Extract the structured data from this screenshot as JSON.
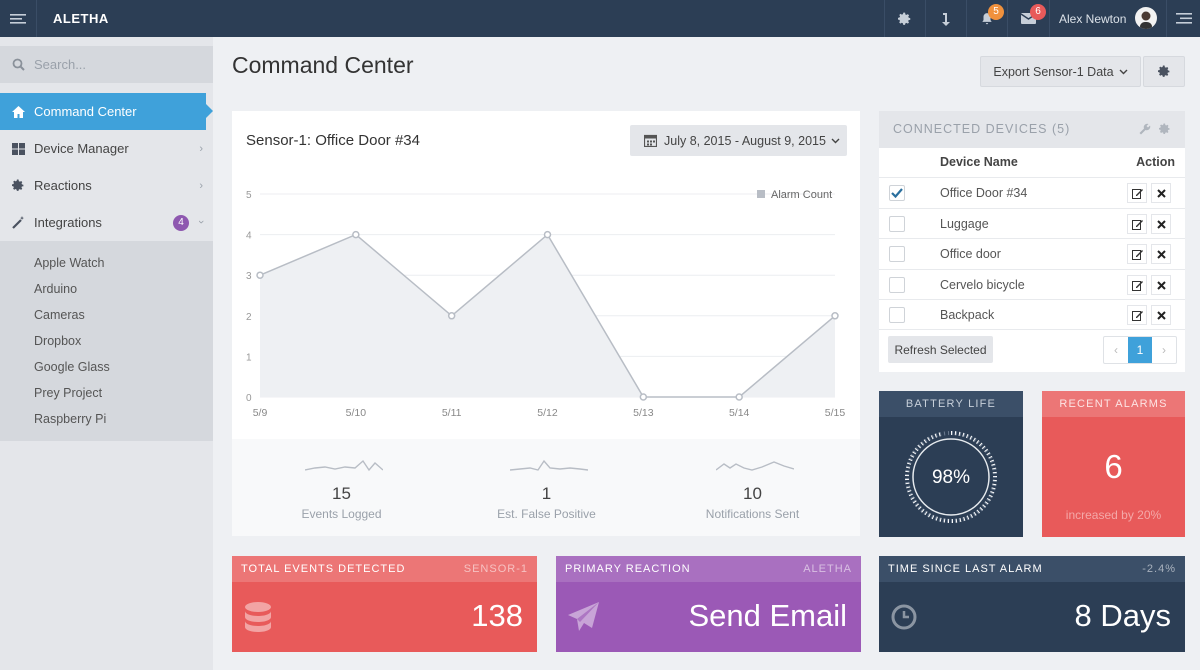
{
  "app": {
    "brand": "ALETHA"
  },
  "topbar": {
    "user_name": "Alex Newton",
    "alerts_count": "5",
    "messages_count": "6",
    "colors": {
      "bg": "#2c3e55",
      "alerts_badge": "#f0913d",
      "messages_badge": "#e85a5a"
    }
  },
  "sidebar": {
    "search_placeholder": "Search...",
    "items": [
      {
        "label": "Command Center",
        "icon": "home-icon"
      },
      {
        "label": "Device Manager",
        "icon": "th-large-icon"
      },
      {
        "label": "Reactions",
        "icon": "cog-icon"
      },
      {
        "label": "Integrations",
        "icon": "magic-wand-icon",
        "badge": "4"
      }
    ],
    "sub_items": [
      "Apple Watch",
      "Arduino",
      "Cameras",
      "Dropbox",
      "Google Glass",
      "Prey Project",
      "Raspberry Pi"
    ]
  },
  "page": {
    "title": "Command Center",
    "export_label": "Export Sensor-1 Data"
  },
  "chart_panel": {
    "title": "Sensor-1: Office Door #34",
    "date_range": "July 8, 2015 - August 9, 2015"
  },
  "chart_data": {
    "type": "area",
    "title": "Sensor-1: Office Door #34",
    "categories": [
      "5/9",
      "5/10",
      "5/11",
      "5/12",
      "5/13",
      "5/14",
      "5/15"
    ],
    "series": [
      {
        "name": "Alarm Count",
        "values": [
          3,
          4,
          2,
          4,
          0,
          0,
          2
        ]
      }
    ],
    "yticks": [
      "0",
      "1",
      "2",
      "3",
      "4",
      "5"
    ],
    "ylim": [
      0,
      5
    ],
    "legend": "top-right",
    "grid": true
  },
  "stats": [
    {
      "value": "15",
      "label": "Events Logged"
    },
    {
      "value": "1",
      "label": "Est. False Positive"
    },
    {
      "value": "10",
      "label": "Notifications Sent"
    }
  ],
  "devices": {
    "title": "CONNECTED DEVICES (5)",
    "col_name": "Device Name",
    "col_action": "Action",
    "rows": [
      {
        "name": "Office Door #34",
        "checked": true
      },
      {
        "name": "Luggage",
        "checked": false
      },
      {
        "name": "Office door",
        "checked": false
      },
      {
        "name": "Cervelo bicycle",
        "checked": false
      },
      {
        "name": "Backpack",
        "checked": false
      }
    ],
    "refresh_label": "Refresh Selected",
    "pager": {
      "prev": "‹",
      "current": "1",
      "next": "›"
    }
  },
  "battery": {
    "label": "BATTERY LIFE",
    "value": "98%",
    "percent": 98
  },
  "alarms": {
    "label": "RECENT ALARMS",
    "value": "6",
    "note": "increased by 20%"
  },
  "bottom": {
    "events": {
      "label": "TOTAL EVENTS DETECTED",
      "tag": "SENSOR-1",
      "value": "138"
    },
    "reaction": {
      "label": "PRIMARY REACTION",
      "tag": "ALETHA",
      "value": "Send Email"
    },
    "time": {
      "label": "TIME SINCE LAST ALARM",
      "tag": "-2.4%",
      "value": "8 Days"
    }
  },
  "colors": {
    "accent": "#3fa1da",
    "red": "#e85a5a",
    "purple": "#8e58b0",
    "navy": "#2c3e55"
  }
}
